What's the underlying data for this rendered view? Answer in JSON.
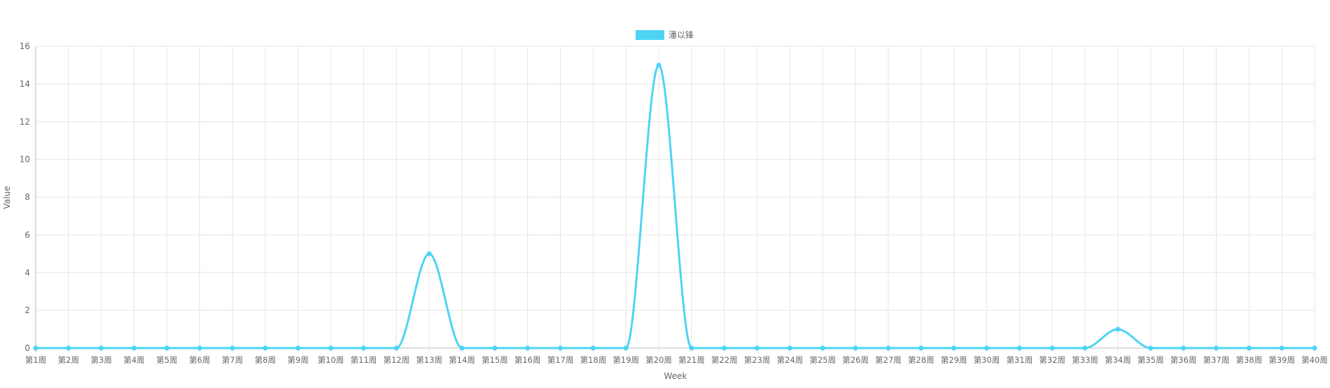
{
  "chart_data": {
    "type": "line",
    "xlabel": "Week",
    "ylabel": "Value",
    "ylim": [
      0,
      16
    ],
    "yticks": [
      0,
      2,
      4,
      6,
      8,
      10,
      12,
      14,
      16
    ],
    "grid": true,
    "legend_position": "top-center",
    "categories": [
      "第1周",
      "第2周",
      "第3周",
      "第4周",
      "第5周",
      "第6周",
      "第7周",
      "第8周",
      "第9周",
      "第10周",
      "第11周",
      "第12周",
      "第13周",
      "第14周",
      "第15周",
      "第16周",
      "第17周",
      "第18周",
      "第19周",
      "第20周",
      "第21周",
      "第22周",
      "第23周",
      "第24周",
      "第25周",
      "第26周",
      "第27周",
      "第28周",
      "第29周",
      "第30周",
      "第31周",
      "第32周",
      "第33周",
      "第34周",
      "第35周",
      "第36周",
      "第37周",
      "第38周",
      "第39周",
      "第40周"
    ],
    "series": [
      {
        "name": "潘以锋",
        "color": "#4dd4f4",
        "values": [
          0,
          0,
          0,
          0,
          0,
          0,
          0,
          0,
          0,
          0,
          0,
          0,
          5,
          0,
          0,
          0,
          0,
          0,
          0,
          15,
          0,
          0,
          0,
          0,
          0,
          0,
          0,
          0,
          0,
          0,
          0,
          0,
          0,
          1,
          0,
          0,
          0,
          0,
          0,
          0
        ]
      }
    ]
  }
}
